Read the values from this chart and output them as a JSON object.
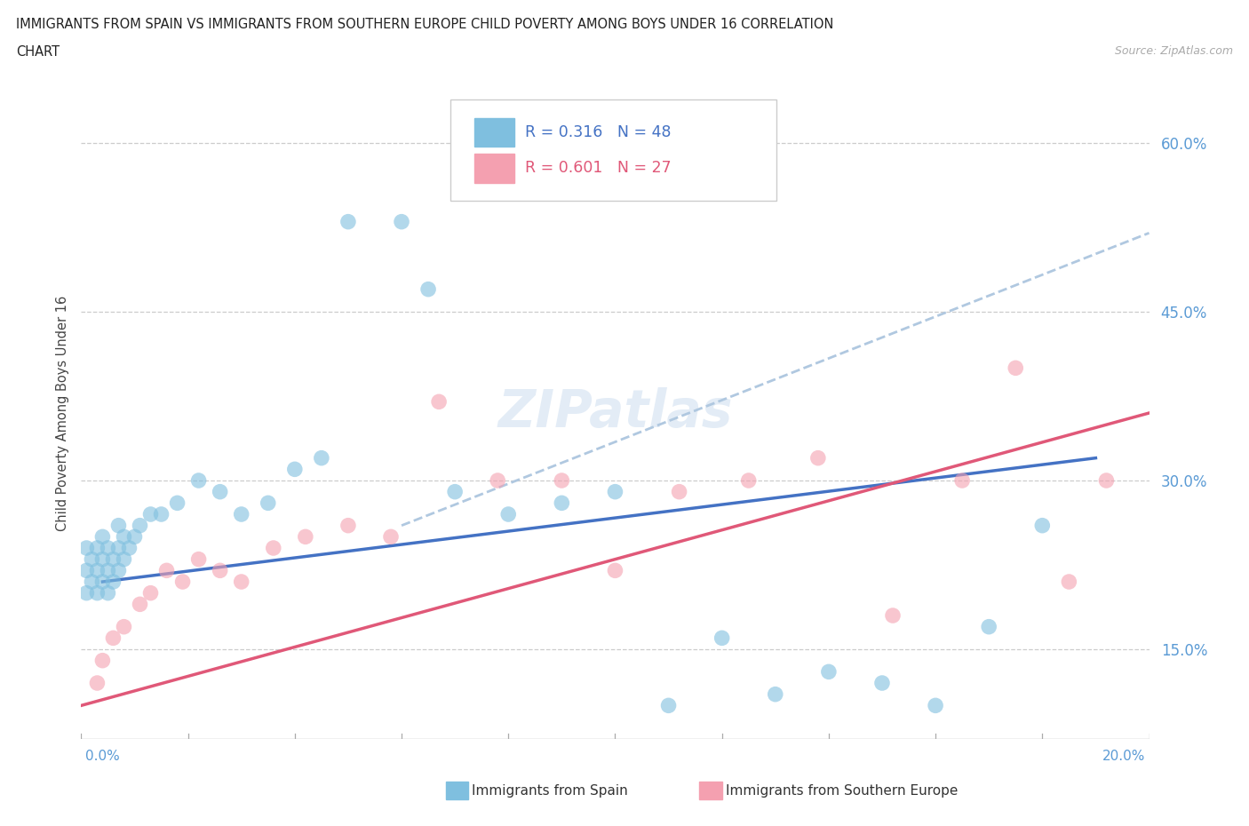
{
  "title_line1": "IMMIGRANTS FROM SPAIN VS IMMIGRANTS FROM SOUTHERN EUROPE CHILD POVERTY AMONG BOYS UNDER 16 CORRELATION",
  "title_line2": "CHART",
  "source_text": "Source: ZipAtlas.com",
  "ylabel": "Child Poverty Among Boys Under 16",
  "ytick_labels": [
    "15.0%",
    "30.0%",
    "45.0%",
    "60.0%"
  ],
  "ytick_values": [
    0.15,
    0.3,
    0.45,
    0.6
  ],
  "xlim": [
    0.0,
    0.2
  ],
  "ylim": [
    0.07,
    0.65
  ],
  "color_spain": "#7fbfdf",
  "color_southern": "#f4a0b0",
  "color_spain_line": "#4472c4",
  "color_southern_line": "#e05878",
  "color_spain_dash": "#b0c8e0",
  "spain_x": [
    0.001,
    0.001,
    0.001,
    0.002,
    0.002,
    0.003,
    0.003,
    0.003,
    0.004,
    0.004,
    0.004,
    0.005,
    0.005,
    0.005,
    0.006,
    0.006,
    0.007,
    0.007,
    0.007,
    0.008,
    0.008,
    0.009,
    0.01,
    0.011,
    0.013,
    0.015,
    0.018,
    0.022,
    0.026,
    0.03,
    0.035,
    0.04,
    0.045,
    0.05,
    0.06,
    0.065,
    0.07,
    0.08,
    0.09,
    0.1,
    0.11,
    0.12,
    0.13,
    0.14,
    0.15,
    0.16,
    0.17,
    0.18
  ],
  "spain_y": [
    0.2,
    0.22,
    0.24,
    0.21,
    0.23,
    0.2,
    0.22,
    0.24,
    0.21,
    0.23,
    0.25,
    0.2,
    0.22,
    0.24,
    0.21,
    0.23,
    0.22,
    0.24,
    0.26,
    0.23,
    0.25,
    0.24,
    0.25,
    0.26,
    0.27,
    0.27,
    0.28,
    0.3,
    0.29,
    0.27,
    0.28,
    0.31,
    0.32,
    0.53,
    0.53,
    0.47,
    0.29,
    0.27,
    0.28,
    0.29,
    0.1,
    0.16,
    0.11,
    0.13,
    0.12,
    0.1,
    0.17,
    0.26
  ],
  "spain_sizes": [
    80,
    80,
    80,
    80,
    80,
    80,
    80,
    80,
    80,
    80,
    80,
    80,
    80,
    80,
    80,
    80,
    80,
    80,
    80,
    80,
    80,
    80,
    80,
    80,
    80,
    80,
    80,
    80,
    80,
    80,
    80,
    80,
    80,
    80,
    80,
    80,
    80,
    80,
    80,
    80,
    80,
    80,
    80,
    80,
    80,
    80,
    80,
    80
  ],
  "southern_x": [
    0.003,
    0.004,
    0.006,
    0.008,
    0.011,
    0.013,
    0.016,
    0.019,
    0.022,
    0.026,
    0.03,
    0.036,
    0.042,
    0.05,
    0.058,
    0.067,
    0.078,
    0.09,
    0.1,
    0.112,
    0.125,
    0.138,
    0.152,
    0.165,
    0.175,
    0.185,
    0.192
  ],
  "southern_y": [
    0.12,
    0.14,
    0.16,
    0.17,
    0.19,
    0.2,
    0.22,
    0.21,
    0.23,
    0.22,
    0.21,
    0.24,
    0.25,
    0.26,
    0.25,
    0.37,
    0.3,
    0.3,
    0.22,
    0.29,
    0.3,
    0.32,
    0.18,
    0.3,
    0.4,
    0.21,
    0.3
  ],
  "spain_line_x": [
    0.004,
    0.19
  ],
  "spain_line_y": [
    0.21,
    0.32
  ],
  "southern_line_x": [
    0.0,
    0.2
  ],
  "southern_line_y": [
    0.1,
    0.36
  ],
  "dash_line_x": [
    0.06,
    0.2
  ],
  "dash_line_y": [
    0.26,
    0.52
  ]
}
